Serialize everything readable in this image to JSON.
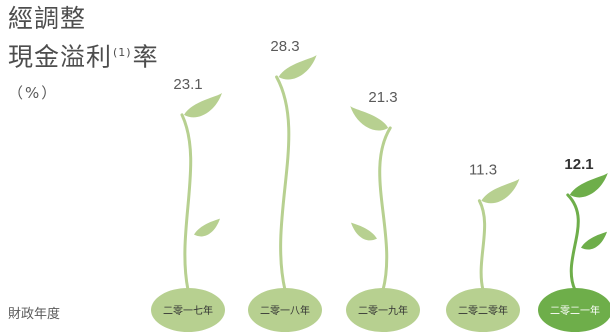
{
  "title": {
    "line1": "經調整",
    "line2_main": "現金溢利",
    "line2_sup": "(1)",
    "line2_end": "率"
  },
  "unit": "（%）",
  "axis_name": "財政年度",
  "colors": {
    "leaf": "#b7d090",
    "seed": "#b7d090",
    "highlight": "#6eae4a",
    "stem": "#b7d090",
    "highlight_stem": "#6eae4a"
  },
  "chart_data": {
    "type": "bar",
    "categories": [
      "二零一七年",
      "二零一八年",
      "二零一九年",
      "二零二零年",
      "二零二一年"
    ],
    "values": [
      23.1,
      28.3,
      21.3,
      11.3,
      12.1
    ],
    "value_labels": [
      "23.1",
      "28.3",
      "21.3",
      "11.3",
      "12.1"
    ],
    "highlight_index": 4,
    "title": "經調整 現金溢利(1)率",
    "ylabel": "（%）",
    "xlabel": "財政年度",
    "ylim": [
      0,
      30
    ],
    "grid": false,
    "legend": "none"
  }
}
